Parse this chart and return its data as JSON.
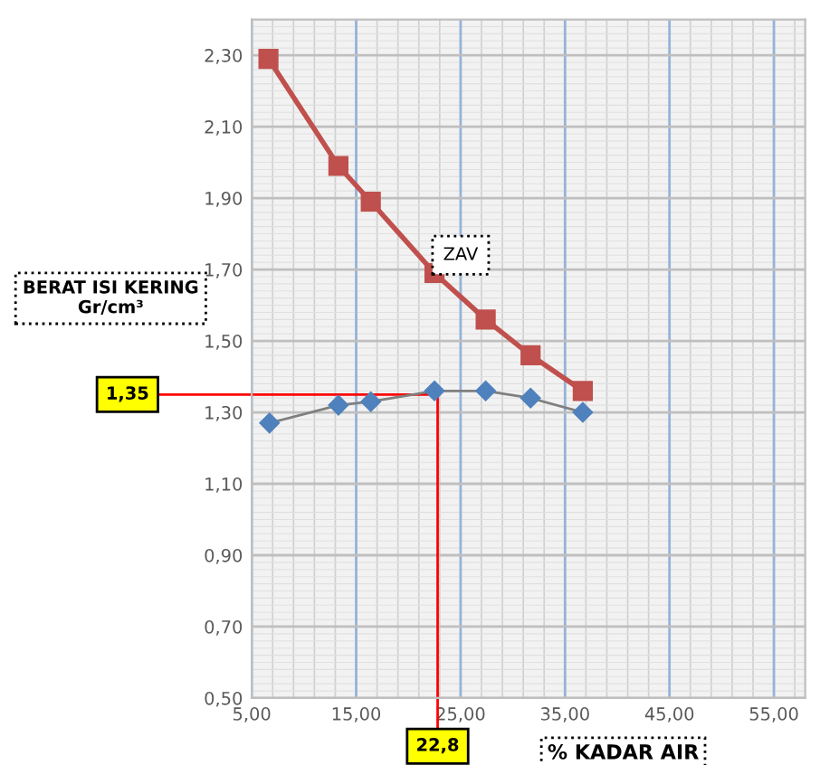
{
  "chart_data": {
    "type": "line",
    "xlabel": "% KADAR AIR",
    "ylabel": "BERAT ISI KERING\nGr/cm³",
    "annotations": [
      {
        "text": "ZAV",
        "x": 25.0,
        "y": 1.74
      }
    ],
    "series": [
      {
        "color": "#c0504d",
        "marker": "square",
        "x": [
          6.6,
          13.3,
          16.4,
          22.5,
          27.4,
          31.7,
          36.7
        ],
        "values": [
          2.29,
          1.99,
          1.89,
          1.69,
          1.56,
          1.46,
          1.36
        ]
      },
      {
        "color": "#4f81bd",
        "marker": "diamond",
        "x": [
          6.7,
          13.3,
          16.4,
          22.5,
          27.4,
          31.7,
          36.7
        ],
        "values": [
          1.27,
          1.32,
          1.33,
          1.36,
          1.36,
          1.34,
          1.3
        ]
      }
    ],
    "ref_lines": [
      {
        "axis": "y",
        "value": 1.35,
        "label": "1,35",
        "color": "#ff0000"
      },
      {
        "axis": "x",
        "value": 22.8,
        "label": "22,8",
        "color": "#ff0000"
      }
    ],
    "xlim": [
      5,
      58
    ],
    "ylim": [
      0.5,
      2.4
    ],
    "xticks": [
      {
        "value": 5,
        "label": "5,00"
      },
      {
        "value": 15,
        "label": "15,00"
      },
      {
        "value": 25,
        "label": "25,00"
      },
      {
        "value": 35,
        "label": "35,00"
      },
      {
        "value": 45,
        "label": "45,00"
      },
      {
        "value": 55,
        "label": "55,00"
      }
    ],
    "yticks": [
      {
        "value": 0.5,
        "label": "0,50"
      },
      {
        "value": 0.7,
        "label": "0,70"
      },
      {
        "value": 0.9,
        "label": "0,90"
      },
      {
        "value": 1.1,
        "label": "1,10"
      },
      {
        "value": 1.3,
        "label": "1,30"
      },
      {
        "value": 1.5,
        "label": "1,50"
      },
      {
        "value": 1.7,
        "label": "1,70"
      },
      {
        "value": 1.9,
        "label": "1,90"
      },
      {
        "value": 2.1,
        "label": "2,10"
      },
      {
        "value": 2.3,
        "label": "2,30"
      }
    ],
    "grid": true,
    "legend": false
  }
}
